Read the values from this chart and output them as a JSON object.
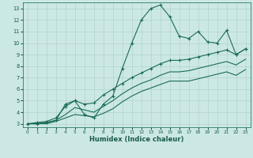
{
  "xlabel": "Humidex (Indice chaleur)",
  "xlim": [
    0,
    23
  ],
  "ylim": [
    3,
    13
  ],
  "xticks": [
    0,
    1,
    2,
    3,
    4,
    5,
    6,
    7,
    8,
    9,
    10,
    11,
    12,
    13,
    14,
    15,
    16,
    17,
    18,
    19,
    20,
    21,
    22,
    23
  ],
  "yticks": [
    3,
    4,
    5,
    6,
    7,
    8,
    9,
    10,
    11,
    12,
    13
  ],
  "background_color": "#cce8e4",
  "grid_color": "#aaccc8",
  "line_color": "#1a6b5a",
  "series1_x": [
    0,
    1,
    2,
    3,
    4,
    5,
    6,
    7,
    8,
    9,
    10,
    11,
    12,
    13,
    14,
    15,
    16,
    17,
    18,
    19,
    20,
    21,
    22,
    23
  ],
  "series1_y": [
    3.0,
    3.0,
    3.1,
    3.3,
    4.7,
    5.0,
    3.8,
    3.5,
    4.7,
    5.4,
    7.8,
    10.0,
    12.0,
    13.0,
    13.3,
    12.3,
    10.6,
    10.4,
    11.0,
    10.1,
    10.0,
    11.1,
    9.0,
    9.5
  ],
  "series2_x": [
    0,
    1,
    2,
    3,
    4,
    5,
    6,
    7,
    8,
    9,
    10,
    11,
    12,
    13,
    14,
    15,
    16,
    17,
    18,
    19,
    20,
    21,
    22,
    23
  ],
  "series2_y": [
    3.0,
    3.1,
    3.2,
    3.5,
    4.5,
    5.0,
    4.7,
    4.8,
    5.5,
    6.0,
    6.5,
    7.0,
    7.4,
    7.8,
    8.2,
    8.5,
    8.5,
    8.6,
    8.8,
    9.0,
    9.2,
    9.4,
    9.0,
    9.5
  ],
  "series3_x": [
    0,
    1,
    2,
    3,
    4,
    5,
    6,
    7,
    8,
    9,
    10,
    11,
    12,
    13,
    14,
    15,
    16,
    17,
    18,
    19,
    20,
    21,
    22,
    23
  ],
  "series3_y": [
    3.0,
    3.0,
    3.1,
    3.3,
    3.8,
    4.4,
    4.2,
    4.0,
    4.5,
    5.0,
    5.6,
    6.1,
    6.5,
    6.8,
    7.2,
    7.5,
    7.5,
    7.6,
    7.8,
    8.0,
    8.2,
    8.4,
    8.1,
    8.6
  ],
  "series4_x": [
    0,
    1,
    2,
    3,
    4,
    5,
    6,
    7,
    8,
    9,
    10,
    11,
    12,
    13,
    14,
    15,
    16,
    17,
    18,
    19,
    20,
    21,
    22,
    23
  ],
  "series4_y": [
    3.0,
    3.0,
    3.0,
    3.2,
    3.5,
    3.8,
    3.7,
    3.6,
    3.9,
    4.3,
    4.9,
    5.4,
    5.8,
    6.1,
    6.4,
    6.7,
    6.7,
    6.7,
    6.9,
    7.1,
    7.3,
    7.5,
    7.2,
    7.7
  ]
}
